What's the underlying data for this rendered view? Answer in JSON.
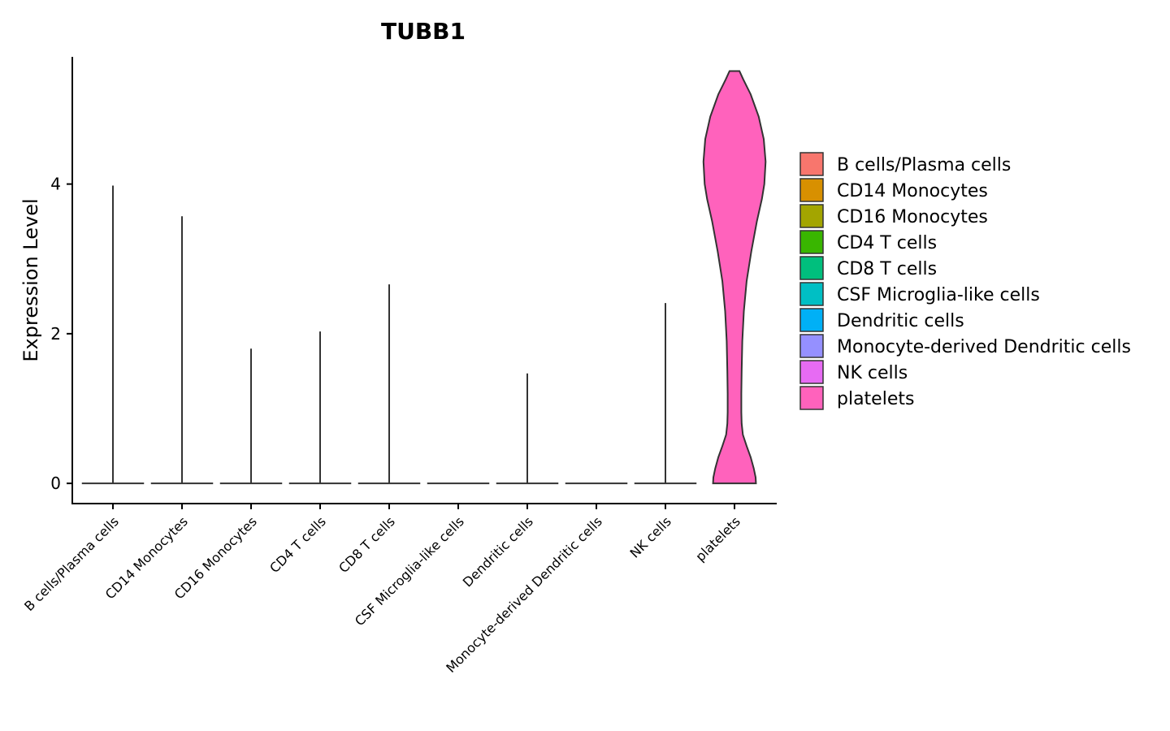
{
  "chart_data": {
    "type": "violin",
    "title": "TUBB1",
    "xlabel": "",
    "ylabel": "Expression Level",
    "ylim": [
      -0.27,
      5.7
    ],
    "yticks": [
      0,
      2,
      4
    ],
    "grid": false,
    "legend_position": "right",
    "categories": [
      "B cells/Plasma cells",
      "CD14 Monocytes",
      "CD16 Monocytes",
      "CD4 T cells",
      "CD8 T cells",
      "CSF Microglia-like cells",
      "Dendritic cells",
      "Monocyte-derived Dendritic cells",
      "NK cells",
      "platelets"
    ],
    "colors": [
      "#F8766D",
      "#D89000",
      "#A3A500",
      "#39B600",
      "#00BF7D",
      "#00BFC4",
      "#00B0F6",
      "#9590FF",
      "#E76BF3",
      "#FF62BC"
    ],
    "series": [
      {
        "name": "B cells/Plasma cells",
        "max": 3.98,
        "profile": []
      },
      {
        "name": "CD14 Monocytes",
        "max": 3.57,
        "profile": []
      },
      {
        "name": "CD16 Monocytes",
        "max": 1.8,
        "profile": []
      },
      {
        "name": "CD4 T cells",
        "max": 2.03,
        "profile": []
      },
      {
        "name": "CD8 T cells",
        "max": 2.66,
        "profile": []
      },
      {
        "name": "CSF Microglia-like cells",
        "max": 0,
        "profile": []
      },
      {
        "name": "Dendritic cells",
        "max": 1.47,
        "profile": []
      },
      {
        "name": "Monocyte-derived Dendritic cells",
        "max": 0,
        "profile": []
      },
      {
        "name": "NK cells",
        "max": 2.41,
        "profile": []
      },
      {
        "name": "platelets",
        "max": 5.51,
        "profile": [
          [
            0.0,
            0.69
          ],
          [
            0.08,
            0.68
          ],
          [
            0.2,
            0.62
          ],
          [
            0.35,
            0.52
          ],
          [
            0.5,
            0.39
          ],
          [
            0.65,
            0.27
          ],
          [
            0.8,
            0.23
          ],
          [
            0.95,
            0.22
          ],
          [
            1.2,
            0.22
          ],
          [
            1.5,
            0.23
          ],
          [
            1.9,
            0.25
          ],
          [
            2.3,
            0.3
          ],
          [
            2.7,
            0.39
          ],
          [
            3.1,
            0.54
          ],
          [
            3.5,
            0.72
          ],
          [
            3.8,
            0.88
          ],
          [
            4.0,
            0.96
          ],
          [
            4.3,
            1.0
          ],
          [
            4.6,
            0.94
          ],
          [
            4.9,
            0.78
          ],
          [
            5.2,
            0.52
          ],
          [
            5.4,
            0.28
          ],
          [
            5.51,
            0.16
          ]
        ]
      }
    ]
  }
}
